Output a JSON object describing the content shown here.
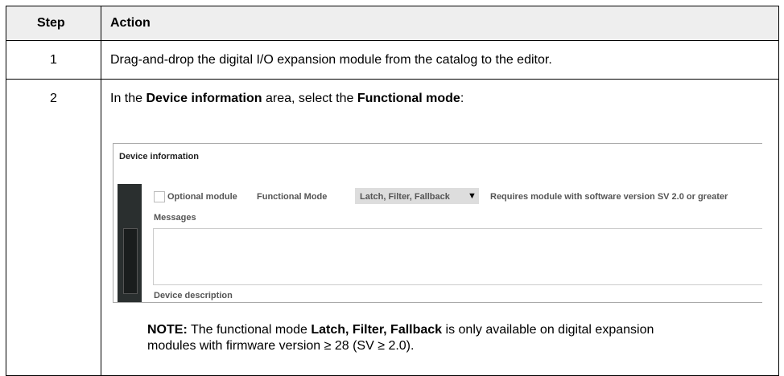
{
  "table": {
    "headers": [
      "Step",
      "Action"
    ],
    "rows": [
      {
        "step": "1",
        "action": "Drag-and-drop the digital I/O expansion module from the catalog to the editor."
      },
      {
        "step": "2",
        "action": [
          "In the ",
          "Device information",
          " area, select the ",
          "Functional mode",
          ":"
        ]
      }
    ]
  },
  "screenshot": {
    "title": "Device information",
    "optional": "Optional module",
    "functional_label": "Functional Mode",
    "dropdown": "Latch, Filter, Fallback",
    "requirement": "Requires module with software version SV 2.0 or greater",
    "messages": "Messages",
    "description": "Device description"
  },
  "note": [
    "NOTE:",
    " The functional mode ",
    "Latch, Filter, Fallback",
    " is only available on digital expansion modules with firmware version ≥ 28 (SV ≥ 2.0)."
  ]
}
